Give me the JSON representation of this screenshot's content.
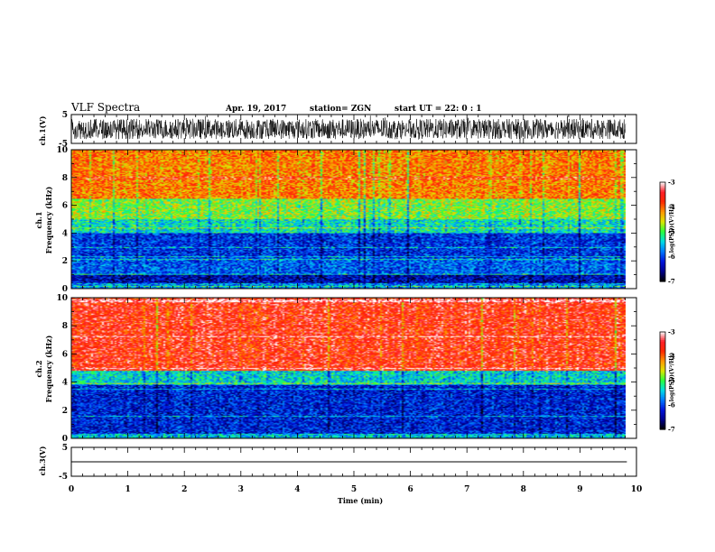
{
  "header": {
    "title": "VLF Spectra",
    "date": "Apr. 19, 2017",
    "station": "station= ZGN",
    "start": "start  UT =   22: 0  : 1"
  },
  "colors": {
    "colormap": [
      "#ffffff",
      "#ff2020",
      "#ff3000",
      "#ffa000",
      "#e0e000",
      "#30ff30",
      "#00e0e0",
      "#0070ff",
      "#0000c0",
      "#000080",
      "#000000"
    ],
    "trace": "#000000"
  },
  "chart_data": [
    {
      "type": "line",
      "name": "ch1-waveform",
      "ylabel": "ch.1(V)",
      "ylim": [
        -5,
        5
      ],
      "yticks": [
        "5",
        "-5"
      ],
      "xlim": [
        0,
        10
      ],
      "envelope_approx_V": [
        -3.5,
        3.5
      ],
      "note_series": "dense noise waveform filling most of the panel"
    },
    {
      "type": "heatmap",
      "name": "ch1-spectrogram",
      "ylabel": [
        "ch.1",
        "Frequency (kHz)"
      ],
      "ylim": [
        0,
        10
      ],
      "yticks": [
        "0",
        "2",
        "4",
        "6",
        "8",
        "10"
      ],
      "xlim": [
        0,
        9.83
      ],
      "colorbar": {
        "label": "log(PSD)(V²/Hz)",
        "range": [
          -7,
          -3
        ],
        "ticks": [
          "-3",
          "-4",
          "-5",
          "-6",
          "-7"
        ]
      },
      "bands": [
        {
          "f": [
            0,
            0.4
          ],
          "level": -5.7
        },
        {
          "f": [
            0.4,
            1.0
          ],
          "level": -6.4
        },
        {
          "f": [
            1.0,
            2.2
          ],
          "level": -5.9
        },
        {
          "f": [
            2.2,
            4.0
          ],
          "level": -6.1
        },
        {
          "f": [
            4.0,
            5.0
          ],
          "level": -5.3
        },
        {
          "f": [
            5.0,
            6.5
          ],
          "level": -4.8
        },
        {
          "f": [
            6.5,
            10
          ],
          "level": -4.1
        }
      ]
    },
    {
      "type": "heatmap",
      "name": "ch2-spectrogram",
      "ylabel": [
        "ch.2",
        "Frequency (kHz)"
      ],
      "ylim": [
        0,
        10
      ],
      "yticks": [
        "0",
        "2",
        "4",
        "6",
        "8",
        "10"
      ],
      "xlim": [
        0,
        9.83
      ],
      "colorbar": {
        "label": "log(PSD)(V²/Hz)",
        "range": [
          -7,
          -3
        ],
        "ticks": [
          "-3",
          "-4",
          "-5",
          "-6",
          "-7"
        ]
      },
      "bands": [
        {
          "f": [
            0,
            0.3
          ],
          "level": -5.5
        },
        {
          "f": [
            0.3,
            3.8
          ],
          "level": -6.2
        },
        {
          "f": [
            3.8,
            4.8
          ],
          "level": -5.4
        },
        {
          "f": [
            4.8,
            10
          ],
          "level": -3.6
        }
      ]
    },
    {
      "type": "line",
      "name": "ch3-waveform",
      "ylabel": "ch.3(V)",
      "ylim": [
        -5,
        5
      ],
      "yticks": [
        "5",
        "-5"
      ],
      "xlim": [
        0,
        10
      ],
      "values_V": [
        0,
        0
      ],
      "x": [
        0,
        9.83
      ]
    }
  ],
  "xaxis": {
    "label": "Time (min)",
    "ticks": [
      "0",
      "1",
      "2",
      "3",
      "4",
      "5",
      "6",
      "7",
      "8",
      "9",
      "10"
    ]
  }
}
